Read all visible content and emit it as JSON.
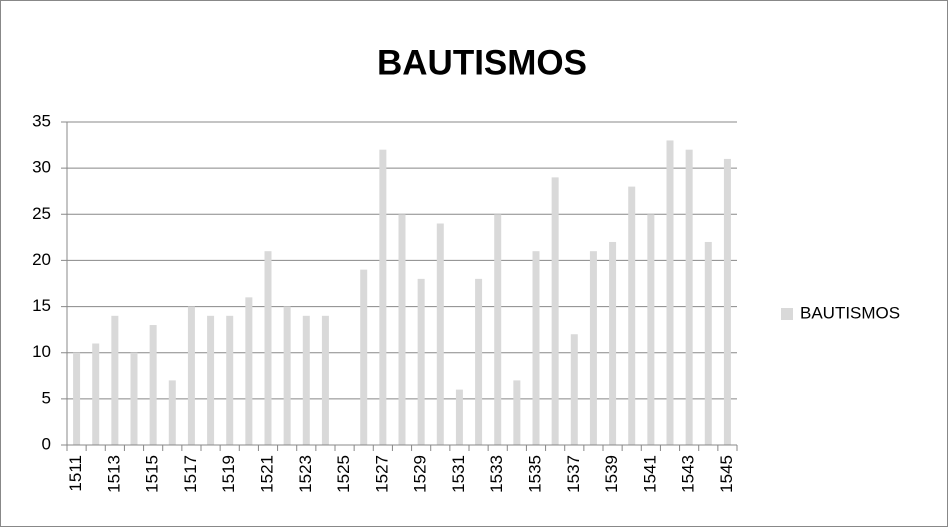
{
  "chart_data": {
    "type": "bar",
    "title": "BAUTISMOS",
    "categories": [
      "1511",
      null,
      "1513",
      null,
      "1515",
      null,
      "1517",
      null,
      "1519",
      null,
      "1521",
      null,
      "1523",
      null,
      "1525",
      null,
      "1527",
      null,
      "1529",
      null,
      "1531",
      null,
      "1533",
      null,
      "1535",
      null,
      "1537",
      null,
      "1539",
      null,
      "1541",
      null,
      "1543",
      null,
      "1545"
    ],
    "series": [
      {
        "name": "BAUTISMOS",
        "color": "#d9d9d9",
        "values": [
          10,
          11,
          14,
          10,
          13,
          7,
          15,
          14,
          14,
          16,
          21,
          15,
          14,
          14,
          0,
          19,
          32,
          25,
          18,
          24,
          6,
          18,
          25,
          7,
          21,
          29,
          12,
          21,
          22,
          28,
          25,
          33,
          32,
          22,
          31
        ]
      }
    ],
    "ylim": [
      0,
      35
    ],
    "yticks": [
      0,
      5,
      10,
      15,
      20,
      25,
      30,
      35
    ],
    "grid": true,
    "legend": "right"
  }
}
